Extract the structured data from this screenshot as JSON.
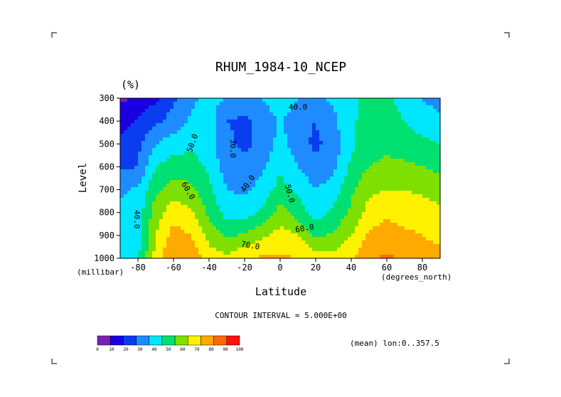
{
  "chart_data": {
    "type": "contour",
    "title": "RHUM_1984-10_NCEP",
    "units": "(%)",
    "xlabel": "Latitude",
    "ylabel": "Level",
    "x_units": "(degrees_north)",
    "y_units": "(millibar)",
    "xlim": [
      -90,
      90
    ],
    "ylim": [
      1000,
      300
    ],
    "x_ticks": [
      -80,
      -60,
      -40,
      -20,
      0,
      20,
      40,
      60,
      80
    ],
    "y_ticks": [
      300,
      400,
      500,
      600,
      700,
      800,
      900,
      1000
    ],
    "contour_interval_text": "CONTOUR INTERVAL = 5.000E+00",
    "footnote": "(mean) lon:0..357.5",
    "colorbar": {
      "levels": [
        0,
        10,
        20,
        30,
        40,
        50,
        60,
        70,
        80,
        90,
        100
      ],
      "colors": [
        "#7a1fb0",
        "#1a00e0",
        "#0a3cf0",
        "#1e8cff",
        "#00e6ff",
        "#00e070",
        "#7de000",
        "#fff200",
        "#ffaa00",
        "#ff6a00",
        "#ff1010"
      ]
    },
    "contour_labels": [
      "40.0",
      "30.0",
      "40.0",
      "50.0",
      "60.0",
      "50.0",
      "40.0",
      "60.0",
      "70.0"
    ],
    "field_latitudes": [
      -90,
      -80,
      -70,
      -60,
      -50,
      -40,
      -30,
      -20,
      -10,
      0,
      10,
      20,
      30,
      40,
      50,
      60,
      70,
      80,
      90
    ],
    "field_levels": [
      300,
      400,
      500,
      600,
      700,
      800,
      900,
      1000
    ],
    "field_values": [
      [
        8,
        12,
        18,
        28,
        38,
        42,
        40,
        36,
        40,
        48,
        40,
        38,
        42,
        45,
        55,
        52,
        46,
        40,
        35
      ],
      [
        15,
        22,
        28,
        34,
        42,
        45,
        30,
        28,
        32,
        42,
        32,
        30,
        38,
        48,
        55,
        55,
        50,
        46,
        42
      ],
      [
        22,
        28,
        40,
        45,
        48,
        44,
        32,
        28,
        32,
        44,
        34,
        28,
        34,
        48,
        56,
        58,
        55,
        52,
        50
      ],
      [
        28,
        30,
        50,
        55,
        55,
        48,
        35,
        32,
        38,
        48,
        40,
        32,
        38,
        52,
        60,
        62,
        62,
        60,
        58
      ],
      [
        38,
        42,
        58,
        65,
        62,
        52,
        40,
        38,
        44,
        54,
        48,
        40,
        45,
        58,
        68,
        70,
        70,
        68,
        65
      ],
      [
        42,
        45,
        65,
        76,
        72,
        58,
        46,
        45,
        52,
        64,
        56,
        45,
        52,
        62,
        74,
        78,
        76,
        75,
        72
      ],
      [
        42,
        46,
        70,
        84,
        80,
        66,
        58,
        62,
        68,
        74,
        70,
        58,
        62,
        70,
        82,
        85,
        82,
        80,
        78
      ],
      [
        44,
        48,
        74,
        90,
        88,
        76,
        72,
        78,
        82,
        82,
        80,
        75,
        74,
        78,
        88,
        92,
        88,
        84,
        82
      ]
    ]
  }
}
